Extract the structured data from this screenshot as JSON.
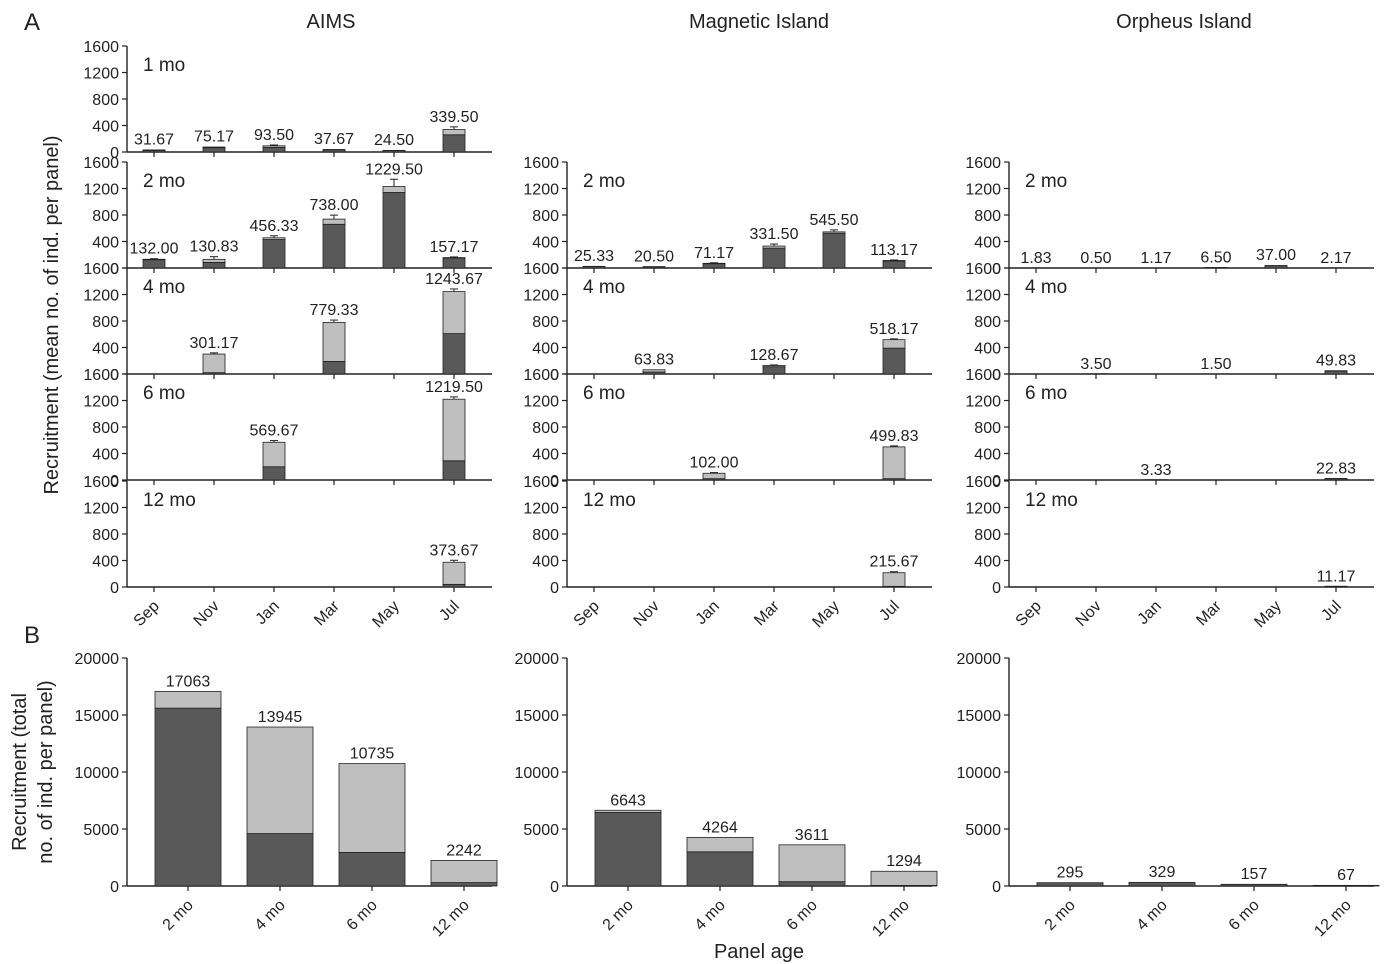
{
  "panel_labels": {
    "a": "A",
    "b": "B"
  },
  "sites": [
    "AIMS",
    "Magnetic Island",
    "Orpheus Island"
  ],
  "ylabel_a": "Recruitment (mean no. of ind. per panel)",
  "ylabel_b_line1": "Recruitment (total",
  "ylabel_b_line2": "no. of ind. per panel)",
  "xlabel_b": "Panel age",
  "colors": {
    "dark": "#595959",
    "light": "#bfbfbf",
    "axis": "#222222"
  },
  "chart_data": [
    {
      "type": "bar",
      "panel": "A",
      "stacked": true,
      "months": [
        "Sep",
        "Nov",
        "Jan",
        "Mar",
        "May",
        "Jul"
      ],
      "yticks": [
        0,
        400,
        800,
        1200,
        1600
      ],
      "ylim": [
        0,
        1600
      ],
      "rows": [
        {
          "age": "1 mo",
          "sites": [
            {
              "site": "AIMS",
              "totals": [
                "31.67",
                "75.17",
                "93.50",
                "37.67",
                "24.50",
                "339.50"
              ],
              "dark": [
                25,
                65,
                70,
                33,
                22,
                260
              ],
              "err": [
                4,
                6,
                12,
                4,
                3,
                40
              ]
            },
            null,
            null
          ]
        },
        {
          "age": "2 mo",
          "sites": [
            {
              "site": "AIMS",
              "totals": [
                "132.00",
                "130.83",
                "456.33",
                "738.00",
                "1229.50",
                "157.17"
              ],
              "dark": [
                125,
                85,
                430,
                660,
                1140,
                150
              ],
              "err": [
                8,
                40,
                30,
                60,
                110,
                10
              ]
            },
            {
              "site": "Magnetic Island",
              "totals": [
                "25.33",
                "20.50",
                "71.17",
                "331.50",
                "545.50",
                "113.17"
              ],
              "dark": [
                22,
                18,
                65,
                300,
                525,
                105
              ],
              "err": [
                3,
                3,
                8,
                30,
                30,
                8
              ]
            },
            {
              "site": "Orpheus Island",
              "totals": [
                "1.83",
                "0.50",
                "1.17",
                "6.50",
                "37.00",
                "2.17"
              ],
              "dark": [
                1.8,
                0.5,
                1.1,
                6,
                35,
                2
              ],
              "err": [
                0,
                0,
                0,
                2,
                5,
                0
              ]
            }
          ]
        },
        {
          "age": "4 mo",
          "sites": [
            {
              "site": "AIMS",
              "totals": [
                "",
                "301.17",
                "",
                "779.33",
                "",
                "1243.67"
              ],
              "dark": [
                0,
                20,
                0,
                190,
                0,
                610
              ],
              "err": [
                0,
                18,
                0,
                35,
                0,
                40
              ]
            },
            {
              "site": "Magnetic Island",
              "totals": [
                "",
                "63.83",
                "",
                "128.67",
                "",
                "518.17"
              ],
              "dark": [
                0,
                30,
                0,
                110,
                0,
                390
              ],
              "err": [
                0,
                4,
                0,
                8,
                0,
                12
              ]
            },
            {
              "site": "Orpheus Island",
              "totals": [
                "",
                "3.50",
                "",
                "1.50",
                "",
                "49.83"
              ],
              "dark": [
                0,
                3.5,
                0,
                1.5,
                0,
                45
              ],
              "err": [
                0,
                0,
                0,
                0,
                0,
                4
              ]
            }
          ]
        },
        {
          "age": "6 mo",
          "sites": [
            {
              "site": "AIMS",
              "totals": [
                "",
                "",
                "569.67",
                "",
                "",
                "1219.50"
              ],
              "dark": [
                0,
                0,
                200,
                0,
                0,
                290
              ],
              "err": [
                0,
                0,
                25,
                0,
                0,
                35
              ]
            },
            {
              "site": "Magnetic Island",
              "totals": [
                "",
                "",
                "102.00",
                "",
                "",
                "499.83"
              ],
              "dark": [
                0,
                0,
                20,
                0,
                0,
                20
              ],
              "err": [
                0,
                0,
                10,
                0,
                0,
                15
              ]
            },
            {
              "site": "Orpheus Island",
              "totals": [
                "",
                "",
                "3.33",
                "",
                "",
                "22.83"
              ],
              "dark": [
                0,
                0,
                3,
                0,
                0,
                20
              ],
              "err": [
                0,
                0,
                0,
                0,
                0,
                3
              ]
            }
          ]
        },
        {
          "age": "12 mo",
          "sites": [
            {
              "site": "AIMS",
              "totals": [
                "",
                "",
                "",
                "",
                "",
                "373.67"
              ],
              "dark": [
                0,
                0,
                0,
                0,
                0,
                40
              ],
              "err": [
                0,
                0,
                0,
                0,
                0,
                30
              ]
            },
            {
              "site": "Magnetic Island",
              "totals": [
                "",
                "",
                "",
                "",
                "",
                "215.67"
              ],
              "dark": [
                0,
                0,
                0,
                0,
                0,
                10
              ],
              "err": [
                0,
                0,
                0,
                0,
                0,
                15
              ]
            },
            {
              "site": "Orpheus Island",
              "totals": [
                "",
                "",
                "",
                "",
                "",
                "11.17"
              ],
              "dark": [
                0,
                0,
                0,
                0,
                0,
                10
              ],
              "err": [
                0,
                0,
                0,
                0,
                0,
                0
              ]
            }
          ]
        }
      ]
    },
    {
      "type": "bar",
      "panel": "B",
      "stacked": true,
      "categories": [
        "2 mo",
        "4 mo",
        "6 mo",
        "12 mo"
      ],
      "yticks": [
        0,
        5000,
        10000,
        15000,
        20000
      ],
      "ylim": [
        0,
        20000
      ],
      "sites": [
        {
          "site": "AIMS",
          "totals": [
            "17063",
            "13945",
            "10735",
            "2242"
          ],
          "values": [
            17063,
            13945,
            10735,
            2242
          ],
          "dark": [
            15600,
            4600,
            2950,
            300
          ]
        },
        {
          "site": "Magnetic Island",
          "totals": [
            "6643",
            "4264",
            "3611",
            "1294"
          ],
          "values": [
            6643,
            4264,
            3611,
            1294
          ],
          "dark": [
            6450,
            3000,
            380,
            50
          ]
        },
        {
          "site": "Orpheus Island",
          "totals": [
            "295",
            "329",
            "157",
            "67"
          ],
          "values": [
            295,
            329,
            157,
            67
          ],
          "dark": [
            290,
            320,
            150,
            55
          ]
        }
      ]
    }
  ]
}
